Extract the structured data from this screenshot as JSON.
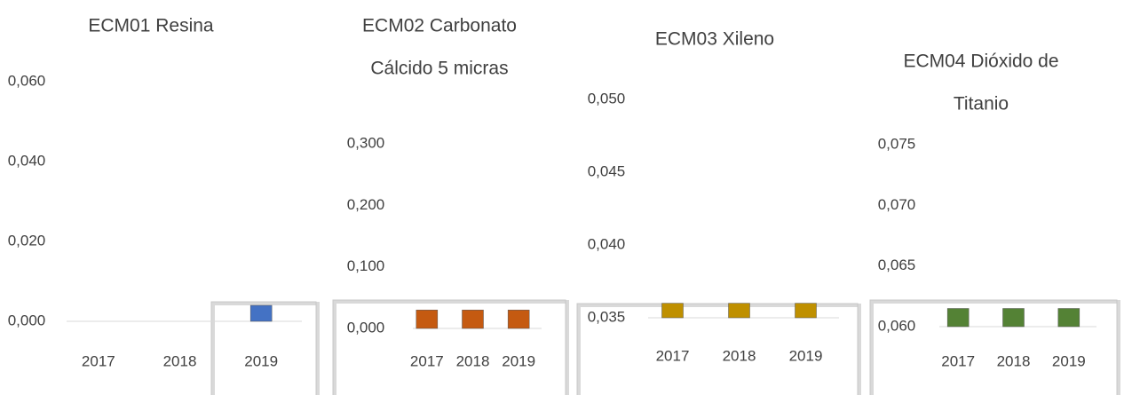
{
  "chart_data": [
    {
      "type": "bar",
      "title": [
        "ECM01 Resina"
      ],
      "categories": [
        "2017",
        "2018",
        "2019"
      ],
      "values": [
        0,
        0,
        0.004
      ],
      "color": "#4472c4",
      "ylim": [
        0,
        0.06
      ],
      "yticks": [
        {
          "value": 0,
          "label": "0,000"
        },
        {
          "value": 0.02,
          "label": "0,020"
        },
        {
          "value": 0.04,
          "label": "0,040"
        },
        {
          "value": 0.06,
          "label": "0,060"
        }
      ]
    },
    {
      "type": "bar",
      "title": [
        "ECM02 Carbonato",
        "Cálcido 5 micras"
      ],
      "categories": [
        "2017",
        "2018",
        "2019"
      ],
      "values": [
        0.03,
        0.03,
        0.03
      ],
      "color": "#c55a11",
      "ylim": [
        0,
        0.3
      ],
      "yticks": [
        {
          "value": 0,
          "label": "0,000"
        },
        {
          "value": 0.1,
          "label": "0,100"
        },
        {
          "value": 0.2,
          "label": "0,200"
        },
        {
          "value": 0.3,
          "label": "0,300"
        }
      ]
    },
    {
      "type": "bar",
      "title": [
        "ECM03 Xileno"
      ],
      "categories": [
        "2017",
        "2018",
        "2019"
      ],
      "values": [
        0.036,
        0.036,
        0.036
      ],
      "color": "#bf9000",
      "ylim": [
        0.035,
        0.05
      ],
      "yticks": [
        {
          "value": 0.035,
          "label": "0,035"
        },
        {
          "value": 0.04,
          "label": "0,040"
        },
        {
          "value": 0.045,
          "label": "0,045"
        },
        {
          "value": 0.05,
          "label": "0,050"
        }
      ]
    },
    {
      "type": "bar",
      "title": [
        "ECM04 Dióxido de",
        "Titanio"
      ],
      "categories": [
        "2017",
        "2018",
        "2019"
      ],
      "values": [
        0.0615,
        0.0615,
        0.0615
      ],
      "color": "#548235",
      "ylim": [
        0.06,
        0.075
      ],
      "yticks": [
        {
          "value": 0.06,
          "label": "0,060"
        },
        {
          "value": 0.065,
          "label": "0,065"
        },
        {
          "value": 0.07,
          "label": "0,070"
        },
        {
          "value": 0.075,
          "label": "0,075"
        }
      ]
    }
  ]
}
